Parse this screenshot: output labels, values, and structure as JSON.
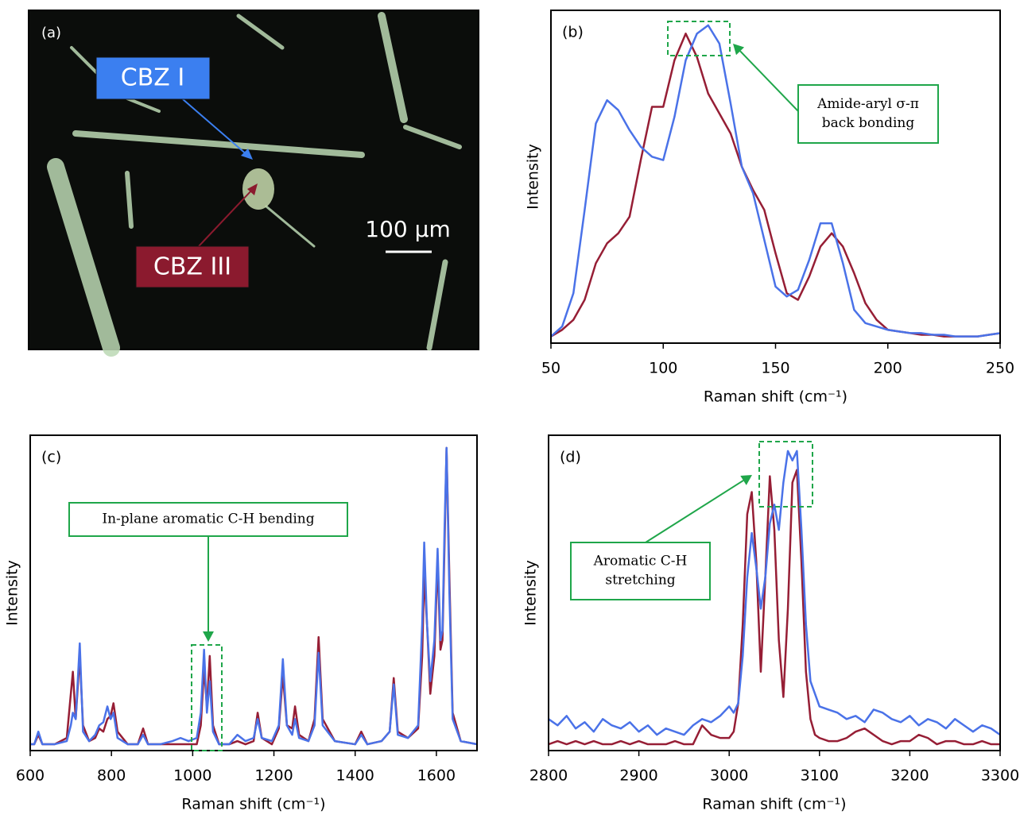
{
  "image": {
    "panel_label": "(a)",
    "labels": [
      "CBZ I",
      "CBZ III"
    ],
    "scale_bar": "100 μm"
  },
  "chart_data": [
    {
      "type": "line",
      "panel_label": "(b)",
      "x_label": "Raman shift (cm⁻¹)",
      "y_label": "Intensity",
      "annotation": [
        "Amide-aryl σ-π",
        "back bonding"
      ],
      "xlim": [
        50,
        250
      ],
      "ylim": [
        0,
        1
      ],
      "xticks": [
        50,
        100,
        150,
        200,
        250
      ],
      "x": [
        50,
        55,
        60,
        65,
        70,
        75,
        80,
        85,
        90,
        95,
        100,
        105,
        110,
        115,
        120,
        125,
        130,
        135,
        140,
        145,
        150,
        155,
        160,
        165,
        170,
        175,
        180,
        185,
        190,
        195,
        200,
        205,
        210,
        215,
        220,
        225,
        230,
        235,
        240,
        245,
        250
      ],
      "series": [
        {
          "color": "#961e35",
          "values": [
            0.02,
            0.04,
            0.07,
            0.13,
            0.24,
            0.3,
            0.33,
            0.38,
            0.55,
            0.71,
            0.71,
            0.85,
            0.93,
            0.86,
            0.75,
            0.69,
            0.63,
            0.53,
            0.46,
            0.4,
            0.27,
            0.15,
            0.13,
            0.2,
            0.29,
            0.33,
            0.29,
            0.21,
            0.12,
            0.07,
            0.04,
            0.035,
            0.03,
            0.025,
            0.025,
            0.02,
            0.02,
            0.02,
            0.02,
            0.025,
            0.03
          ]
        },
        {
          "color": "#4a72e8",
          "values": [
            0.02,
            0.05,
            0.15,
            0.4,
            0.66,
            0.73,
            0.7,
            0.64,
            0.59,
            0.56,
            0.55,
            0.68,
            0.85,
            0.93,
            0.955,
            0.9,
            0.72,
            0.53,
            0.45,
            0.31,
            0.17,
            0.14,
            0.16,
            0.25,
            0.36,
            0.36,
            0.24,
            0.1,
            0.06,
            0.05,
            0.04,
            0.035,
            0.03,
            0.03,
            0.025,
            0.025,
            0.02,
            0.02,
            0.02,
            0.025,
            0.03
          ]
        }
      ]
    },
    {
      "type": "line",
      "panel_label": "(c)",
      "x_label": "Raman shift (cm⁻¹)",
      "y_label": "Intensity",
      "annotation": [
        "In-plane aromatic C-H bending"
      ],
      "xlim": [
        600,
        1700
      ],
      "ylim": [
        0,
        1
      ],
      "xticks": [
        600,
        800,
        1000,
        1200,
        1400,
        1600
      ],
      "x": [
        600,
        610,
        620,
        630,
        660,
        690,
        700,
        705,
        712,
        722,
        730,
        745,
        760,
        770,
        780,
        790,
        798,
        805,
        815,
        840,
        865,
        878,
        890,
        920,
        950,
        970,
        990,
        1010,
        1020,
        1028,
        1035,
        1042,
        1050,
        1065,
        1090,
        1110,
        1130,
        1150,
        1160,
        1170,
        1195,
        1212,
        1222,
        1232,
        1245,
        1252,
        1262,
        1285,
        1300,
        1310,
        1320,
        1350,
        1400,
        1415,
        1430,
        1465,
        1485,
        1495,
        1505,
        1530,
        1555,
        1565,
        1570,
        1577,
        1585,
        1595,
        1603,
        1610,
        1615,
        1620,
        1625,
        1632,
        1640,
        1660,
        1700
      ],
      "series": [
        {
          "color": "#961e35",
          "values": [
            0.02,
            0.02,
            0.05,
            0.02,
            0.02,
            0.04,
            0.18,
            0.25,
            0.1,
            0.3,
            0.08,
            0.03,
            0.04,
            0.07,
            0.06,
            0.1,
            0.11,
            0.15,
            0.06,
            0.02,
            0.02,
            0.07,
            0.02,
            0.02,
            0.02,
            0.02,
            0.02,
            0.02,
            0.08,
            0.26,
            0.14,
            0.3,
            0.08,
            0.02,
            0.02,
            0.03,
            0.02,
            0.03,
            0.12,
            0.04,
            0.02,
            0.07,
            0.24,
            0.08,
            0.07,
            0.14,
            0.05,
            0.03,
            0.1,
            0.36,
            0.1,
            0.03,
            0.02,
            0.06,
            0.02,
            0.03,
            0.06,
            0.23,
            0.06,
            0.04,
            0.07,
            0.3,
            0.56,
            0.4,
            0.18,
            0.3,
            0.6,
            0.32,
            0.35,
            0.65,
            0.96,
            0.55,
            0.12,
            0.03,
            0.02
          ]
        },
        {
          "color": "#4a72e8",
          "values": [
            0.02,
            0.02,
            0.06,
            0.02,
            0.02,
            0.03,
            0.08,
            0.12,
            0.1,
            0.34,
            0.06,
            0.03,
            0.05,
            0.08,
            0.09,
            0.14,
            0.1,
            0.12,
            0.04,
            0.02,
            0.02,
            0.05,
            0.02,
            0.02,
            0.03,
            0.04,
            0.03,
            0.04,
            0.12,
            0.32,
            0.12,
            0.22,
            0.06,
            0.02,
            0.02,
            0.05,
            0.03,
            0.04,
            0.1,
            0.04,
            0.03,
            0.08,
            0.29,
            0.08,
            0.05,
            0.1,
            0.04,
            0.03,
            0.08,
            0.31,
            0.08,
            0.03,
            0.02,
            0.05,
            0.02,
            0.03,
            0.06,
            0.21,
            0.05,
            0.04,
            0.08,
            0.4,
            0.66,
            0.4,
            0.22,
            0.35,
            0.64,
            0.35,
            0.38,
            0.7,
            0.96,
            0.5,
            0.1,
            0.03,
            0.02
          ]
        }
      ]
    },
    {
      "type": "line",
      "panel_label": "(d)",
      "x_label": "Raman shift (cm⁻¹)",
      "y_label": "Intensity",
      "annotation": [
        "Aromatic C-H",
        "stretching"
      ],
      "xlim": [
        2800,
        3300
      ],
      "ylim": [
        0,
        1
      ],
      "xticks": [
        2800,
        2900,
        3000,
        3100,
        3200,
        3300
      ],
      "x": [
        2800,
        2810,
        2820,
        2830,
        2840,
        2850,
        2860,
        2870,
        2880,
        2890,
        2900,
        2910,
        2920,
        2930,
        2940,
        2950,
        2960,
        2970,
        2980,
        2990,
        3000,
        3005,
        3010,
        3015,
        3020,
        3025,
        3030,
        3035,
        3040,
        3045,
        3050,
        3055,
        3060,
        3065,
        3070,
        3075,
        3080,
        3085,
        3090,
        3095,
        3100,
        3110,
        3120,
        3130,
        3140,
        3150,
        3160,
        3170,
        3180,
        3190,
        3200,
        3210,
        3220,
        3230,
        3240,
        3250,
        3260,
        3270,
        3280,
        3290,
        3300
      ],
      "series": [
        {
          "color": "#961e35",
          "values": [
            0.02,
            0.03,
            0.02,
            0.03,
            0.02,
            0.03,
            0.02,
            0.02,
            0.03,
            0.02,
            0.03,
            0.02,
            0.02,
            0.02,
            0.03,
            0.02,
            0.02,
            0.08,
            0.05,
            0.04,
            0.04,
            0.06,
            0.15,
            0.4,
            0.75,
            0.82,
            0.6,
            0.25,
            0.55,
            0.87,
            0.7,
            0.35,
            0.17,
            0.45,
            0.85,
            0.89,
            0.6,
            0.25,
            0.1,
            0.05,
            0.04,
            0.03,
            0.03,
            0.04,
            0.06,
            0.07,
            0.05,
            0.03,
            0.02,
            0.03,
            0.03,
            0.05,
            0.04,
            0.02,
            0.03,
            0.03,
            0.02,
            0.02,
            0.03,
            0.02,
            0.02
          ]
        },
        {
          "color": "#4a72e8",
          "values": [
            0.1,
            0.08,
            0.11,
            0.07,
            0.09,
            0.06,
            0.1,
            0.08,
            0.07,
            0.09,
            0.06,
            0.08,
            0.05,
            0.07,
            0.06,
            0.05,
            0.08,
            0.1,
            0.09,
            0.11,
            0.14,
            0.12,
            0.15,
            0.3,
            0.55,
            0.69,
            0.58,
            0.45,
            0.55,
            0.72,
            0.78,
            0.7,
            0.85,
            0.95,
            0.92,
            0.95,
            0.7,
            0.4,
            0.22,
            0.18,
            0.14,
            0.13,
            0.12,
            0.1,
            0.11,
            0.09,
            0.13,
            0.12,
            0.1,
            0.09,
            0.11,
            0.08,
            0.1,
            0.09,
            0.07,
            0.1,
            0.08,
            0.06,
            0.08,
            0.07,
            0.05
          ]
        }
      ]
    }
  ]
}
